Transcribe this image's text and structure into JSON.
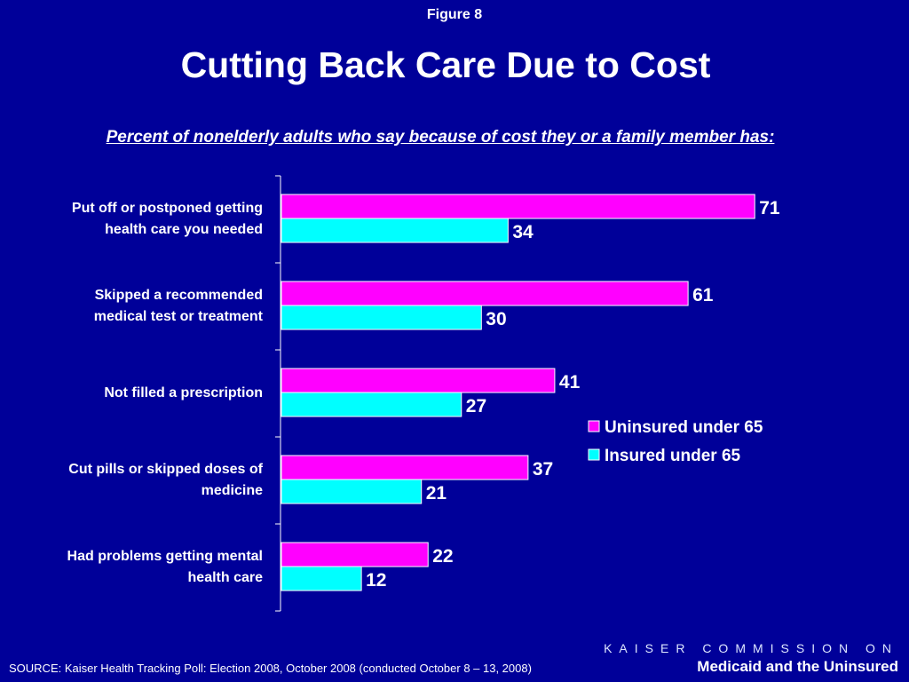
{
  "header": {
    "figure_label": "Figure 8",
    "title": "Cutting Back Care Due to Cost",
    "subtitle": "Percent of nonelderly adults who say because of cost they or a family member has:"
  },
  "colors": {
    "background": "#000099",
    "uninsured": "#FF00FF",
    "insured": "#00FFFF",
    "text": "#FFFFFF"
  },
  "chart_data": {
    "type": "bar",
    "orientation": "horizontal",
    "categories": [
      "Put off or postponed getting health care you needed",
      "Skipped a recommended medical test or treatment",
      "Not filled a prescription",
      "Cut pills or skipped doses of medicine",
      "Had problems getting mental health care"
    ],
    "series": [
      {
        "name": "Uninsured under 65",
        "values": [
          71,
          61,
          41,
          37,
          22
        ]
      },
      {
        "name": "Insured under 65",
        "values": [
          34,
          30,
          27,
          21,
          12
        ]
      }
    ],
    "xlim": [
      0,
      80
    ],
    "grid": false,
    "legend_position": "right"
  },
  "footer": {
    "source": "SOURCE: Kaiser Health Tracking Poll: Election 2008, October 2008 (conducted October 8 – 13, 2008)",
    "org_line1": "KAISER COMMISSION ON",
    "org_line2": "Medicaid and the Uninsured"
  }
}
